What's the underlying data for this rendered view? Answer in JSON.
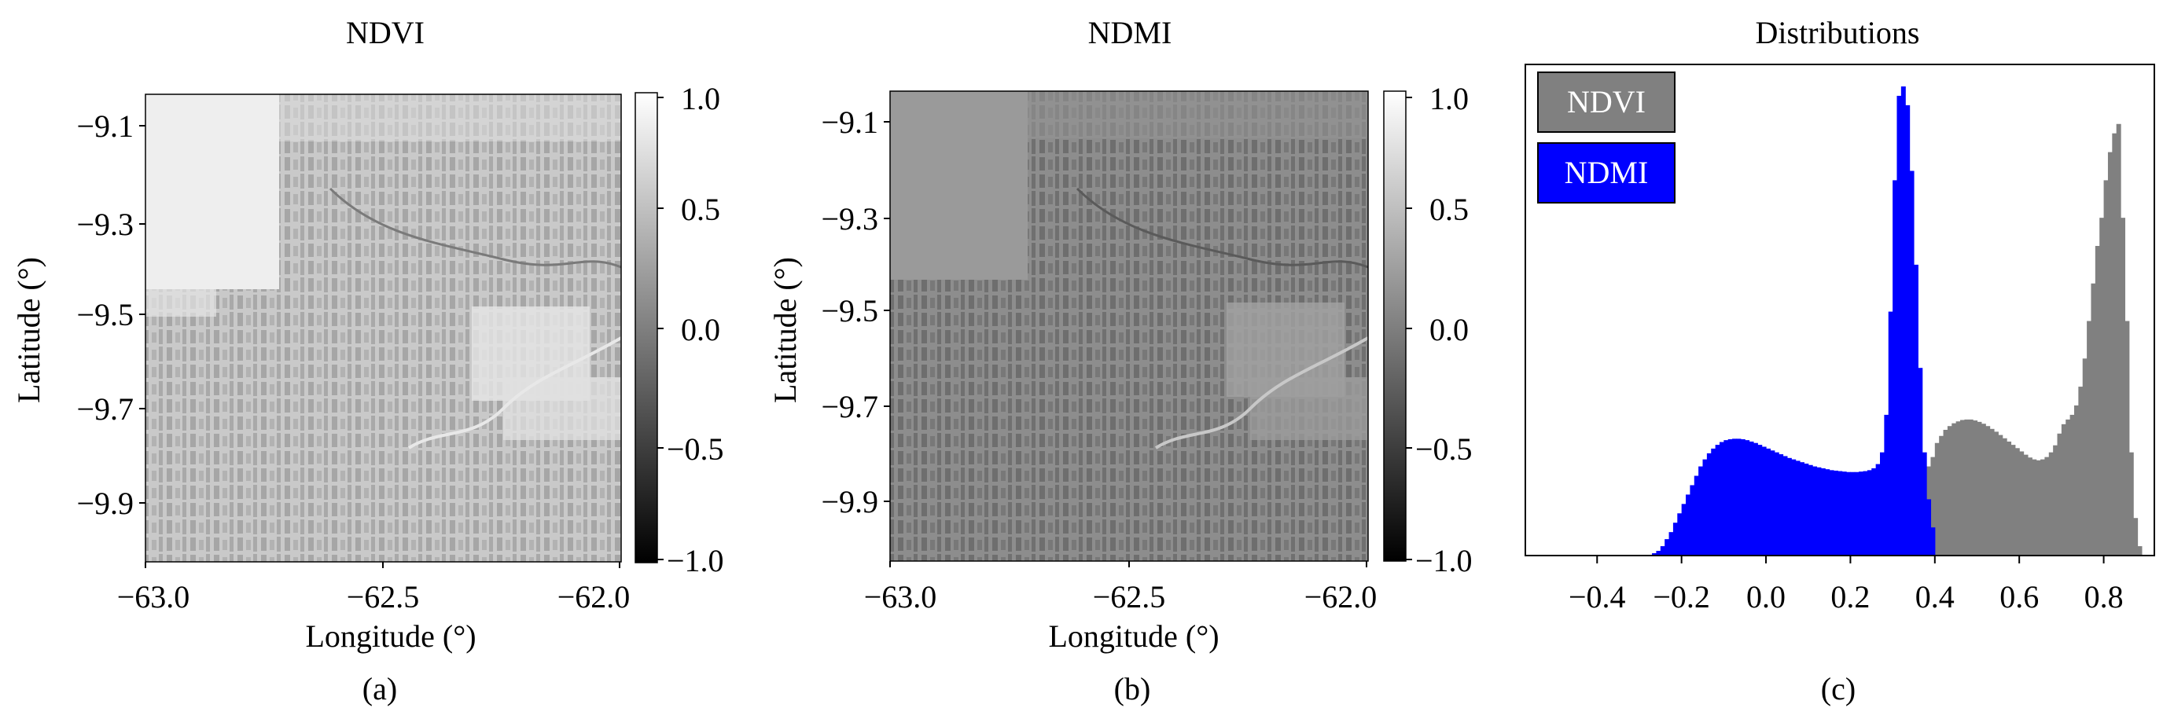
{
  "panels": [
    {
      "title": "NDVI",
      "caption": "(a)",
      "xlabel": "Longitude (°)",
      "ylabel": "Latitude (°)",
      "xticks": [
        "−63.0",
        "−62.5",
        "−62.0"
      ],
      "yticks": [
        "−9.1",
        "−9.3",
        "−9.5",
        "−9.7",
        "−9.9"
      ],
      "colorbar": {
        "ticks": [
          "1.0",
          "0.5",
          "0.0",
          "−0.5",
          "−1.0"
        ],
        "range": [
          -1.0,
          1.0
        ],
        "colors": [
          "#000000",
          "#ffffff"
        ]
      },
      "image_tone": "#c6c6c6"
    },
    {
      "title": "NDMI",
      "caption": "(b)",
      "xlabel": "Longitude (°)",
      "ylabel": "Latitude (°)",
      "xticks": [
        "−63.0",
        "−62.5",
        "−62.0"
      ],
      "yticks": [
        "−9.1",
        "−9.3",
        "−9.5",
        "−9.7",
        "−9.9"
      ],
      "colorbar": {
        "ticks": [
          "1.0",
          "0.5",
          "0.0",
          "−0.5",
          "−1.0"
        ],
        "range": [
          -1.0,
          1.0
        ],
        "colors": [
          "#000000",
          "#ffffff"
        ]
      },
      "image_tone": "#8f8f8f"
    }
  ],
  "chart_data": {
    "type": "histogram",
    "title": "Distributions",
    "caption": "(c)",
    "xlabel": "",
    "ylabel": "",
    "xlim": [
      -0.57,
      0.92
    ],
    "xticks": [
      "−0.4",
      "−0.2",
      "0.0",
      "0.2",
      "0.4",
      "0.6",
      "0.8"
    ],
    "xtick_values": [
      -0.4,
      -0.2,
      0.0,
      0.2,
      0.4,
      0.6,
      0.8
    ],
    "legend_position": "top-left",
    "bin_width": 0.01,
    "series": [
      {
        "name": "NDVI",
        "color": "#808080",
        "x": [
          0.3,
          0.31,
          0.32,
          0.33,
          0.34,
          0.35,
          0.36,
          0.37,
          0.38,
          0.39,
          0.4,
          0.41,
          0.42,
          0.43,
          0.44,
          0.45,
          0.46,
          0.47,
          0.48,
          0.49,
          0.5,
          0.51,
          0.52,
          0.53,
          0.54,
          0.55,
          0.56,
          0.57,
          0.58,
          0.59,
          0.6,
          0.61,
          0.62,
          0.63,
          0.64,
          0.65,
          0.66,
          0.67,
          0.68,
          0.69,
          0.7,
          0.71,
          0.72,
          0.73,
          0.74,
          0.75,
          0.76,
          0.77,
          0.78,
          0.79,
          0.8,
          0.81,
          0.82,
          0.83,
          0.84,
          0.85,
          0.86,
          0.87,
          0.88
        ],
        "values": [
          0.06,
          0.08,
          0.1,
          0.12,
          0.14,
          0.16,
          0.17,
          0.18,
          0.19,
          0.21,
          0.24,
          0.255,
          0.268,
          0.276,
          0.282,
          0.286,
          0.289,
          0.29,
          0.29,
          0.288,
          0.285,
          0.281,
          0.276,
          0.27,
          0.264,
          0.257,
          0.25,
          0.243,
          0.236,
          0.229,
          0.222,
          0.215,
          0.209,
          0.205,
          0.203,
          0.205,
          0.21,
          0.22,
          0.235,
          0.26,
          0.28,
          0.29,
          0.3,
          0.32,
          0.36,
          0.42,
          0.5,
          0.58,
          0.66,
          0.72,
          0.8,
          0.86,
          0.9,
          0.92,
          0.72,
          0.5,
          0.22,
          0.08,
          0.02
        ]
      },
      {
        "name": "NDMI",
        "color": "#0000ff",
        "x": [
          -0.27,
          -0.26,
          -0.25,
          -0.24,
          -0.23,
          -0.22,
          -0.21,
          -0.2,
          -0.19,
          -0.18,
          -0.17,
          -0.16,
          -0.15,
          -0.14,
          -0.13,
          -0.12,
          -0.11,
          -0.1,
          -0.09,
          -0.08,
          -0.07,
          -0.06,
          -0.05,
          -0.04,
          -0.03,
          -0.02,
          -0.01,
          0.0,
          0.01,
          0.02,
          0.03,
          0.04,
          0.05,
          0.06,
          0.07,
          0.08,
          0.09,
          0.1,
          0.11,
          0.12,
          0.13,
          0.14,
          0.15,
          0.16,
          0.17,
          0.18,
          0.19,
          0.2,
          0.21,
          0.22,
          0.23,
          0.24,
          0.25,
          0.26,
          0.27,
          0.28,
          0.29,
          0.3,
          0.31,
          0.32,
          0.33,
          0.34,
          0.35,
          0.36,
          0.37,
          0.38,
          0.39
        ],
        "values": [
          0.005,
          0.01,
          0.02,
          0.035,
          0.05,
          0.07,
          0.09,
          0.11,
          0.13,
          0.15,
          0.17,
          0.19,
          0.205,
          0.218,
          0.228,
          0.236,
          0.242,
          0.246,
          0.248,
          0.249,
          0.249,
          0.248,
          0.246,
          0.243,
          0.24,
          0.236,
          0.232,
          0.228,
          0.224,
          0.22,
          0.216,
          0.212,
          0.208,
          0.205,
          0.202,
          0.199,
          0.196,
          0.193,
          0.19,
          0.188,
          0.186,
          0.184,
          0.182,
          0.181,
          0.18,
          0.179,
          0.178,
          0.178,
          0.178,
          0.179,
          0.18,
          0.182,
          0.186,
          0.195,
          0.22,
          0.3,
          0.52,
          0.8,
          0.98,
          1.0,
          0.96,
          0.82,
          0.62,
          0.4,
          0.22,
          0.12,
          0.06
        ]
      }
    ]
  }
}
